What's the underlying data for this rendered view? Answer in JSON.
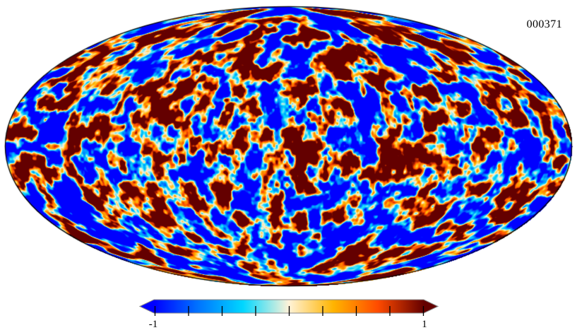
{
  "chart_data": {
    "type": "heatmap",
    "projection": "mollweide",
    "label": "000371",
    "description": "Full-sky Mollweide projection of a simulated CMB-like Gaussian random field shown with the Planck parchment colormap; elliptical map with thin black outline on white background, horizontal colorbar with extend arrows below",
    "value_range": [
      -1,
      1
    ],
    "colorbar": {
      "min_label": "-1",
      "max_label": "1",
      "tick_values": [
        -1,
        -0.75,
        -0.5,
        -0.25,
        0,
        0.25,
        0.5,
        0.75,
        1
      ],
      "extend_arrows": true,
      "outline_color": "#8a8a8a",
      "tick_color": "#000000"
    },
    "colormap": {
      "name": "planck-parchment",
      "stops": [
        {
          "pos": 0.0,
          "color": "#0000ff"
        },
        {
          "pos": 0.165,
          "color": "#0074ff"
        },
        {
          "pos": 0.33,
          "color": "#00d7ff"
        },
        {
          "pos": 0.5,
          "color": "#fff3d8"
        },
        {
          "pos": 0.665,
          "color": "#ffb400"
        },
        {
          "pos": 0.83,
          "color": "#ff4b00"
        },
        {
          "pos": 1.0,
          "color": "#640000"
        }
      ]
    },
    "field": {
      "seed": 371,
      "octaves": [
        {
          "freq": 8,
          "amp": 1.0
        },
        {
          "freq": 17,
          "amp": 0.5
        },
        {
          "freq": 34,
          "amp": 0.22
        }
      ],
      "gain": 2.8
    },
    "map_outline_color": "#000000",
    "background_color": "#ffffff"
  }
}
